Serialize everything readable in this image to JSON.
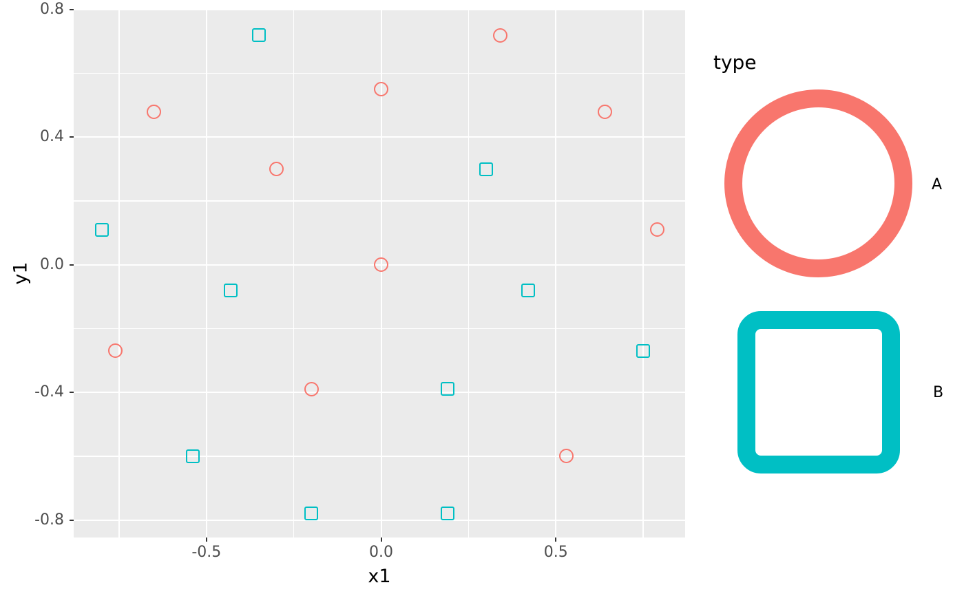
{
  "chart_data": {
    "type": "scatter",
    "title": "",
    "xlabel": "x1",
    "ylabel": "y1",
    "grid": true,
    "panel_background": "#EBEBEB",
    "x_axis": {
      "label": "x1",
      "range": [
        -0.88,
        0.87
      ],
      "ticks": [
        {
          "v": -0.5,
          "t": "-0.5"
        },
        {
          "v": 0.0,
          "t": "0.0"
        },
        {
          "v": 0.5,
          "t": "0.5"
        }
      ],
      "minor": [
        -0.75,
        -0.25,
        0.25,
        0.75
      ]
    },
    "y_axis": {
      "label": "y1",
      "range": [
        -0.855,
        0.8
      ],
      "ticks": [
        {
          "v": 0.8,
          "t": "0.8"
        },
        {
          "v": 0.4,
          "t": "0.4"
        },
        {
          "v": 0.0,
          "t": "0.0"
        },
        {
          "v": -0.4,
          "t": "-0.4"
        },
        {
          "v": -0.8,
          "t": "-0.8"
        }
      ],
      "minor": [
        0.6,
        0.2,
        -0.2,
        -0.6
      ]
    },
    "legend": {
      "title": "type",
      "position": "right",
      "entries": [
        {
          "label": "A",
          "shape": "circle",
          "color": "#F8766D"
        },
        {
          "label": "B",
          "shape": "square",
          "color": "#00BFC4"
        }
      ]
    },
    "series": [
      {
        "name": "A",
        "shape": "circle",
        "color": "#F8766D",
        "points": [
          [
            -0.65,
            0.48
          ],
          [
            -0.3,
            0.3
          ],
          [
            0.0,
            0.55
          ],
          [
            0.34,
            0.72
          ],
          [
            0.64,
            0.48
          ],
          [
            0.79,
            0.11
          ],
          [
            0.0,
            0.0
          ],
          [
            -0.76,
            -0.27
          ],
          [
            -0.2,
            -0.39
          ],
          [
            0.53,
            -0.6
          ]
        ]
      },
      {
        "name": "B",
        "shape": "square",
        "color": "#00BFC4",
        "points": [
          [
            -0.35,
            0.72
          ],
          [
            -0.8,
            0.11
          ],
          [
            -0.43,
            -0.08
          ],
          [
            -0.54,
            -0.6
          ],
          [
            -0.2,
            -0.78
          ],
          [
            0.3,
            0.3
          ],
          [
            0.42,
            -0.08
          ],
          [
            0.75,
            -0.27
          ],
          [
            0.19,
            -0.39
          ],
          [
            0.19,
            -0.78
          ]
        ]
      }
    ]
  },
  "style": {
    "panel_bg": "#EBEBEB",
    "grid_color": "#FFFFFF",
    "tick_mark_color": "#333333",
    "tick_label_color": "#4D4D4D",
    "title_color": "#000000"
  }
}
